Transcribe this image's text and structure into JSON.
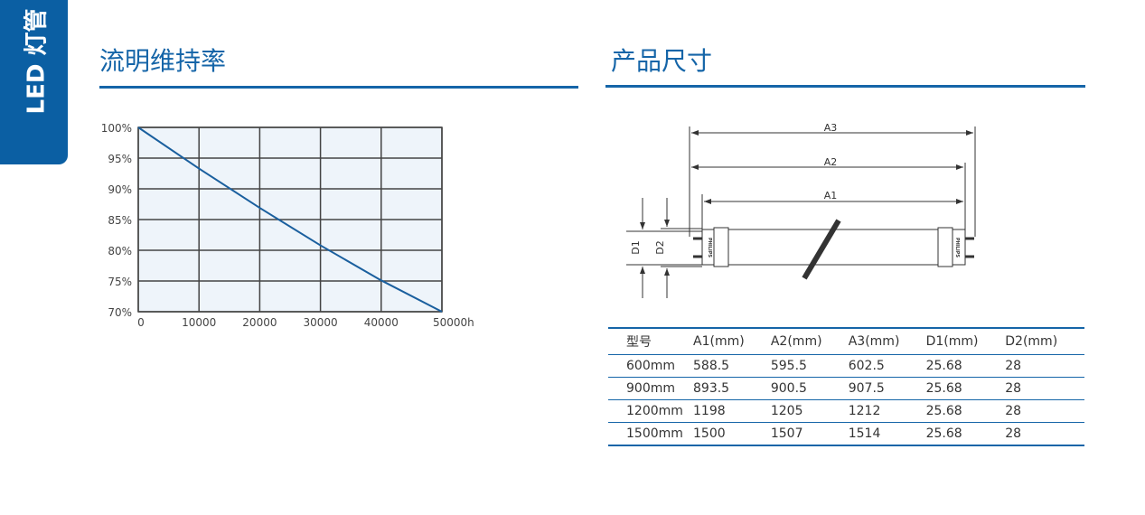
{
  "side_tab": {
    "label": "LED 灯管"
  },
  "left_section": {
    "title": "流明维持率"
  },
  "right_section": {
    "title": "产品尺寸"
  },
  "chart_data": {
    "type": "line",
    "title": "",
    "xlabel": "",
    "ylabel": "",
    "x_ticks": [
      "0",
      "10000",
      "20000",
      "30000",
      "40000",
      "50000h"
    ],
    "y_ticks": [
      "100%",
      "95%",
      "90%",
      "85%",
      "80%",
      "75%",
      "70%"
    ],
    "xlim": [
      0,
      50000
    ],
    "ylim": [
      70,
      100
    ],
    "grid": true,
    "x": [
      0,
      10000,
      20000,
      30000,
      40000,
      50000
    ],
    "series": [
      {
        "values": [
          100,
          93.3,
          86.9,
          80.8,
          75.1,
          70
        ]
      }
    ],
    "colors": {
      "line": "#1a5f9e",
      "plot_bg": "#eef4fa",
      "grid": "#444444"
    }
  },
  "diagram": {
    "labels": {
      "a1": "A1",
      "a2": "A2",
      "a3": "A3",
      "d1": "D1",
      "d2": "D2"
    },
    "brand": "PHILIPS"
  },
  "table": {
    "headers": [
      "型号",
      "A1(mm)",
      "A2(mm)",
      "A3(mm)",
      "D1(mm)",
      "D2(mm)"
    ],
    "rows": [
      [
        "600mm",
        "588.5",
        "595.5",
        "602.5",
        "25.68",
        "28"
      ],
      [
        "900mm",
        "893.5",
        "900.5",
        "907.5",
        "25.68",
        "28"
      ],
      [
        "1200mm",
        "1198",
        "1205",
        "1212",
        "25.68",
        "28"
      ],
      [
        "1500mm",
        "1500",
        "1507",
        "1514",
        "25.68",
        "28"
      ]
    ]
  }
}
